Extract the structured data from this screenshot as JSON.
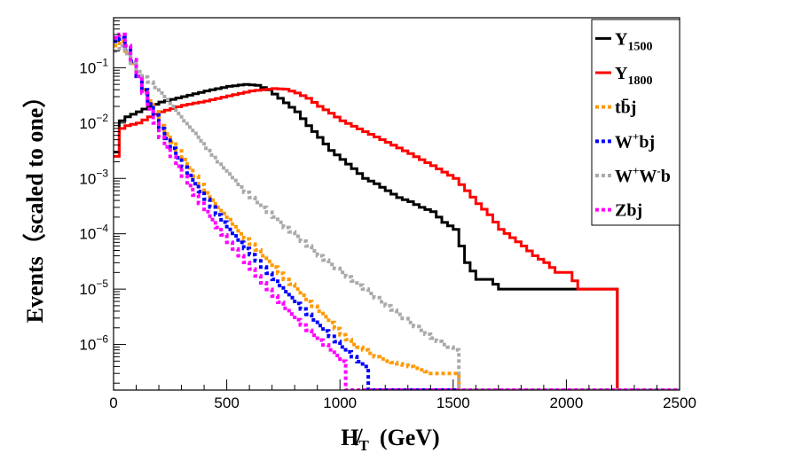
{
  "chart_data": {
    "type": "line",
    "title": "",
    "xlabel": "H̸T (GeV)",
    "xlabel_main": "H̸",
    "xlabel_sub": "T",
    "xlabel_unit": "(GeV)",
    "ylabel": "Events（scaled to one）",
    "xlim": [
      0,
      2500
    ],
    "ylim": [
      1.5e-07,
      0.8
    ],
    "yscale": "log",
    "x_ticks": [
      0,
      500,
      1000,
      1500,
      2000,
      2500
    ],
    "x_tick_labels": [
      "0",
      "500",
      "1000",
      "1500",
      "2000",
      "2500"
    ],
    "y_ticks": [
      {
        "value": 1e-06,
        "base": "10",
        "exp": "−6"
      },
      {
        "value": 1e-05,
        "base": "10",
        "exp": "−5"
      },
      {
        "value": 0.0001,
        "base": "10",
        "exp": "−4"
      },
      {
        "value": 0.001,
        "base": "10",
        "exp": "−3"
      },
      {
        "value": 0.01,
        "base": "10",
        "exp": "−2"
      },
      {
        "value": 0.1,
        "base": "10",
        "exp": "−1"
      }
    ],
    "bin_width": 25,
    "legend_position": "top-right",
    "series": [
      {
        "name": "Y1500",
        "legend_main": "Y",
        "legend_sub": "1500",
        "color": "#000000",
        "style": "solid",
        "points": [
          [
            0,
            0.003
          ],
          [
            25,
            0.011
          ],
          [
            50,
            0.013
          ],
          [
            100,
            0.016
          ],
          [
            150,
            0.02
          ],
          [
            200,
            0.024
          ],
          [
            300,
            0.03
          ],
          [
            400,
            0.038
          ],
          [
            500,
            0.046
          ],
          [
            575,
            0.05
          ],
          [
            625,
            0.048
          ],
          [
            675,
            0.04
          ],
          [
            725,
            0.028
          ],
          [
            800,
            0.016
          ],
          [
            850,
            0.009
          ],
          [
            900,
            0.0055
          ],
          [
            950,
            0.0032
          ],
          [
            1000,
            0.0022
          ],
          [
            1050,
            0.0015
          ],
          [
            1100,
            0.001
          ],
          [
            1150,
            0.0008
          ],
          [
            1200,
            0.0006
          ],
          [
            1250,
            0.00045
          ],
          [
            1300,
            0.00038
          ],
          [
            1350,
            0.0003
          ],
          [
            1400,
            0.00025
          ],
          [
            1450,
            0.00016
          ],
          [
            1500,
            0.00012
          ],
          [
            1550,
            3e-05
          ],
          [
            1600,
            1.5e-05
          ],
          [
            1650,
            1.5e-05
          ],
          [
            1700,
            1e-05
          ],
          [
            1750,
            1e-05
          ],
          [
            1800,
            1e-05
          ],
          [
            1850,
            1e-05
          ],
          [
            1900,
            1e-05
          ],
          [
            1950,
            1e-05
          ],
          [
            2000,
            1e-05
          ],
          [
            2050,
            1e-05
          ],
          [
            2100,
            1e-05
          ],
          [
            2150,
            1e-05
          ],
          [
            2200,
            1e-05
          ]
        ]
      },
      {
        "name": "Y1800",
        "legend_main": "Y",
        "legend_sub": "1800",
        "color": "#ff0000",
        "style": "solid",
        "points": [
          [
            0,
            0.0025
          ],
          [
            25,
            0.008
          ],
          [
            50,
            0.009
          ],
          [
            100,
            0.01
          ],
          [
            150,
            0.013
          ],
          [
            200,
            0.016
          ],
          [
            300,
            0.021
          ],
          [
            400,
            0.025
          ],
          [
            500,
            0.031
          ],
          [
            600,
            0.038
          ],
          [
            700,
            0.042
          ],
          [
            750,
            0.041
          ],
          [
            800,
            0.035
          ],
          [
            850,
            0.028
          ],
          [
            900,
            0.02
          ],
          [
            950,
            0.015
          ],
          [
            1000,
            0.011
          ],
          [
            1100,
            0.007
          ],
          [
            1200,
            0.0045
          ],
          [
            1300,
            0.0028
          ],
          [
            1400,
            0.0017
          ],
          [
            1500,
            0.001
          ],
          [
            1550,
            0.0006
          ],
          [
            1600,
            0.00035
          ],
          [
            1650,
            0.00022
          ],
          [
            1700,
            0.00012
          ],
          [
            1750,
            8.5e-05
          ],
          [
            1800,
            6e-05
          ],
          [
            1850,
            4e-05
          ],
          [
            1900,
            3e-05
          ],
          [
            1950,
            2e-05
          ],
          [
            2000,
            2e-05
          ],
          [
            2050,
            1e-05
          ],
          [
            2100,
            1e-05
          ],
          [
            2150,
            1e-05
          ],
          [
            2200,
            1e-05
          ]
        ]
      },
      {
        "name": "tb̄j",
        "legend_text": "tb̄j",
        "color": "#ff9900",
        "style": "dotted",
        "points": [
          [
            0,
            0.25
          ],
          [
            25,
            0.3
          ],
          [
            50,
            0.2
          ],
          [
            75,
            0.12
          ],
          [
            100,
            0.07
          ],
          [
            125,
            0.04
          ],
          [
            150,
            0.025
          ],
          [
            175,
            0.016
          ],
          [
            200,
            0.009
          ],
          [
            250,
            0.0045
          ],
          [
            300,
            0.0022
          ],
          [
            350,
            0.0011
          ],
          [
            400,
            0.00055
          ],
          [
            450,
            0.0003
          ],
          [
            500,
            0.00018
          ],
          [
            550,
            0.0001
          ],
          [
            600,
            6.5e-05
          ],
          [
            650,
            4e-05
          ],
          [
            700,
            2.5e-05
          ],
          [
            750,
            1.5e-05
          ],
          [
            800,
            1e-05
          ],
          [
            850,
            6e-06
          ],
          [
            900,
            4e-06
          ],
          [
            950,
            2.5e-06
          ],
          [
            1000,
            1.5e-06
          ],
          [
            1050,
            1e-06
          ],
          [
            1100,
            8e-07
          ],
          [
            1150,
            6e-07
          ],
          [
            1200,
            5e-07
          ],
          [
            1300,
            4e-07
          ],
          [
            1400,
            3e-07
          ],
          [
            1500,
            3e-07
          ]
        ]
      },
      {
        "name": "W+bj",
        "legend_main": "W",
        "legend_sup": "+",
        "legend_tail": "bj",
        "color": "#0000ff",
        "style": "dotted",
        "points": [
          [
            0,
            0.3
          ],
          [
            25,
            0.35
          ],
          [
            50,
            0.22
          ],
          [
            75,
            0.13
          ],
          [
            100,
            0.07
          ],
          [
            125,
            0.04
          ],
          [
            150,
            0.022
          ],
          [
            175,
            0.014
          ],
          [
            200,
            0.008
          ],
          [
            250,
            0.0035
          ],
          [
            300,
            0.0016
          ],
          [
            350,
            0.0008
          ],
          [
            400,
            0.00042
          ],
          [
            450,
            0.00022
          ],
          [
            500,
            0.00012
          ],
          [
            550,
            7e-05
          ],
          [
            600,
            4.2e-05
          ],
          [
            650,
            2.5e-05
          ],
          [
            700,
            1.5e-05
          ],
          [
            750,
            9e-06
          ],
          [
            800,
            5.5e-06
          ],
          [
            850,
            3.5e-06
          ],
          [
            900,
            2.2e-06
          ],
          [
            950,
            1.4e-06
          ],
          [
            1000,
            9e-07
          ],
          [
            1050,
            6e-07
          ],
          [
            1100,
            4e-07
          ]
        ]
      },
      {
        "name": "W+W-b",
        "legend_main": "W",
        "legend_sup": "+",
        "legend_main2": "W",
        "legend_sup2": "-",
        "legend_tail": "b",
        "color": "#aaaaaa",
        "style": "dotted",
        "points": [
          [
            0,
            0.2
          ],
          [
            25,
            0.25
          ],
          [
            50,
            0.18
          ],
          [
            75,
            0.12
          ],
          [
            100,
            0.085
          ],
          [
            150,
            0.055
          ],
          [
            200,
            0.035
          ],
          [
            250,
            0.02
          ],
          [
            300,
            0.011
          ],
          [
            350,
            0.0065
          ],
          [
            400,
            0.0035
          ],
          [
            450,
            0.002
          ],
          [
            500,
            0.0012
          ],
          [
            550,
            0.0007
          ],
          [
            600,
            0.00045
          ],
          [
            650,
            0.0003
          ],
          [
            700,
            0.0002
          ],
          [
            750,
            0.00013
          ],
          [
            800,
            9e-05
          ],
          [
            850,
            6e-05
          ],
          [
            900,
            4e-05
          ],
          [
            950,
            2.8e-05
          ],
          [
            1000,
            2e-05
          ],
          [
            1050,
            1.4e-05
          ],
          [
            1100,
            1e-05
          ],
          [
            1150,
            7e-06
          ],
          [
            1200,
            5e-06
          ],
          [
            1250,
            3.5e-06
          ],
          [
            1300,
            2.5e-06
          ],
          [
            1350,
            1.8e-06
          ],
          [
            1400,
            1.3e-06
          ],
          [
            1450,
            1e-06
          ],
          [
            1500,
            8e-07
          ]
        ]
      },
      {
        "name": "Zbj",
        "legend_text": "Zbj",
        "color": "#ff00ff",
        "style": "dotted",
        "points": [
          [
            0,
            0.35
          ],
          [
            25,
            0.4
          ],
          [
            50,
            0.25
          ],
          [
            75,
            0.14
          ],
          [
            100,
            0.07
          ],
          [
            125,
            0.035
          ],
          [
            150,
            0.018
          ],
          [
            175,
            0.01
          ],
          [
            200,
            0.0055
          ],
          [
            250,
            0.0025
          ],
          [
            300,
            0.0011
          ],
          [
            350,
            0.0005
          ],
          [
            400,
            0.00025
          ],
          [
            450,
            0.00013
          ],
          [
            500,
            7e-05
          ],
          [
            550,
            4e-05
          ],
          [
            600,
            2.3e-05
          ],
          [
            650,
            1.3e-05
          ],
          [
            700,
            7.5e-06
          ],
          [
            750,
            4.5e-06
          ],
          [
            800,
            2.8e-06
          ],
          [
            850,
            1.8e-06
          ],
          [
            900,
            1.2e-06
          ],
          [
            950,
            8e-07
          ],
          [
            1000,
            5e-07
          ]
        ]
      }
    ]
  }
}
